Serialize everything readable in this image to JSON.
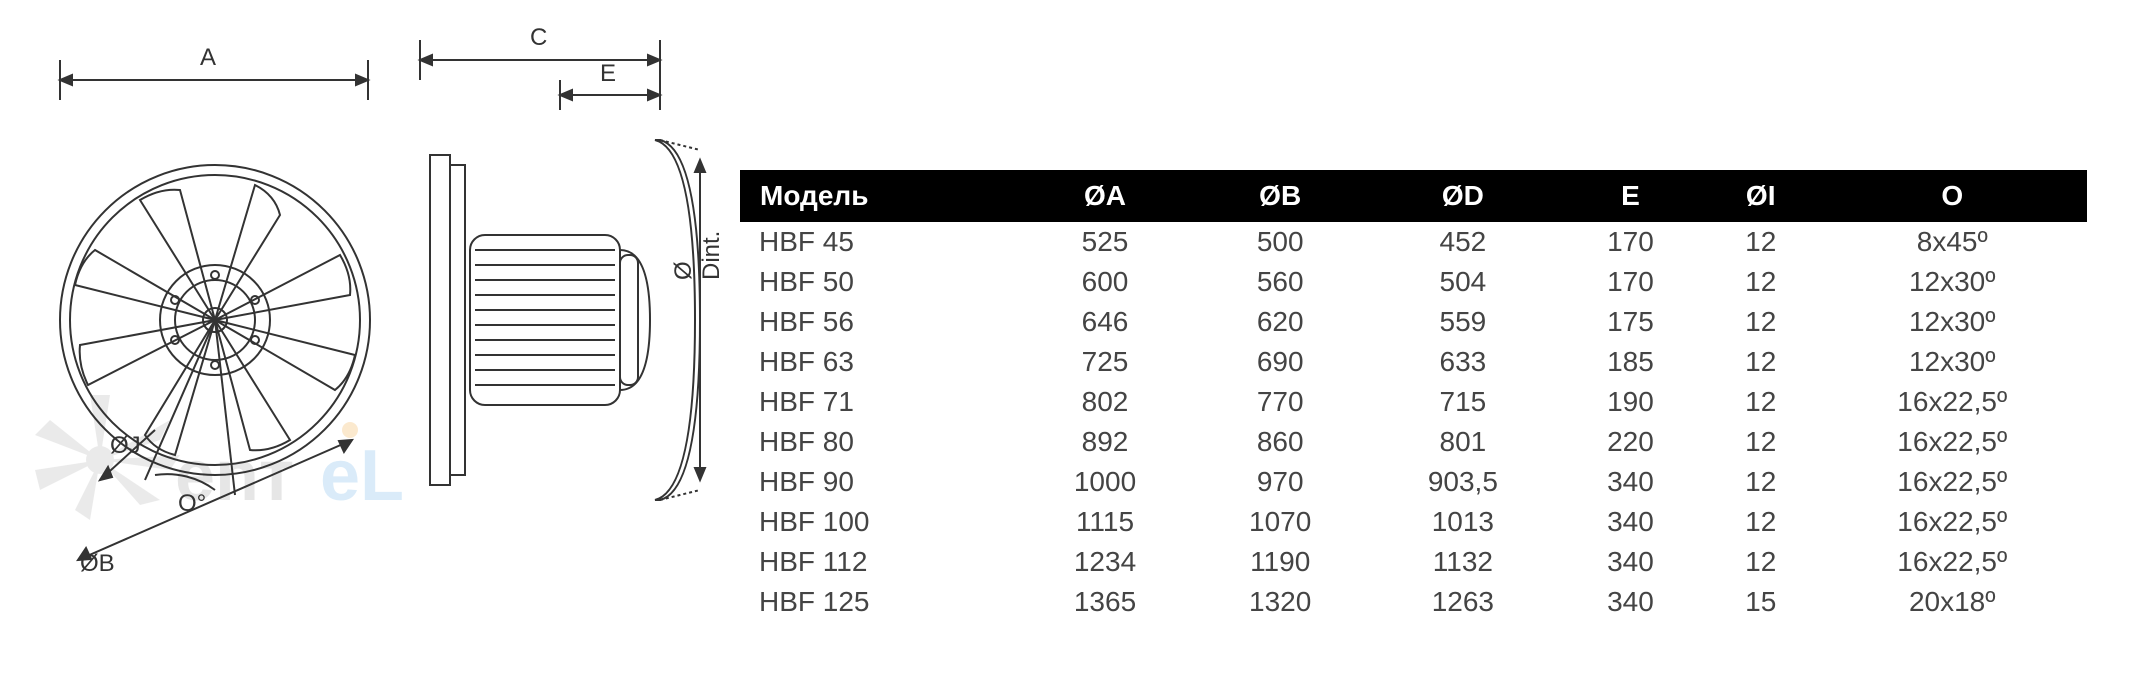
{
  "diagram": {
    "labels": {
      "A": "A",
      "B": "ØB",
      "C": "C",
      "D": "ØJ",
      "E": "E",
      "O": "O°",
      "Dint": "Ø Dint."
    },
    "stroke": "#333333",
    "linewidth": 2.0
  },
  "watermark": {
    "text": "еnтеL",
    "fan_color": "#b0b0b0",
    "text_color_left": "#9e9e9e",
    "text_color_right": "#6fb4e8",
    "accent": "#f3a941"
  },
  "table": {
    "header_bg": "#000000",
    "header_fg": "#ffffff",
    "cell_fg": "#444444",
    "font_size": 28,
    "columns": [
      "Модель",
      "ØA",
      "ØB",
      "ØD",
      "E",
      "ØI",
      "O"
    ],
    "rows": [
      [
        "HBF 45",
        "525",
        "500",
        "452",
        "170",
        "12",
        "8x45º"
      ],
      [
        "HBF 50",
        "600",
        "560",
        "504",
        "170",
        "12",
        "12x30º"
      ],
      [
        "HBF 56",
        "646",
        "620",
        "559",
        "175",
        "12",
        "12x30º"
      ],
      [
        "HBF 63",
        "725",
        "690",
        "633",
        "185",
        "12",
        "12x30º"
      ],
      [
        "HBF 71",
        "802",
        "770",
        "715",
        "190",
        "12",
        "16x22,5º"
      ],
      [
        "HBF 80",
        "892",
        "860",
        "801",
        "220",
        "12",
        "16x22,5º"
      ],
      [
        "HBF 90",
        "1000",
        "970",
        "903,5",
        "340",
        "12",
        "16x22,5º"
      ],
      [
        "HBF 100",
        "1115",
        "1070",
        "1013",
        "340",
        "12",
        "16x22,5º"
      ],
      [
        "HBF 112",
        "1234",
        "1190",
        "1132",
        "340",
        "12",
        "16x22,5º"
      ],
      [
        "HBF 125",
        "1365",
        "1320",
        "1263",
        "340",
        "15",
        "20x18º"
      ]
    ]
  }
}
